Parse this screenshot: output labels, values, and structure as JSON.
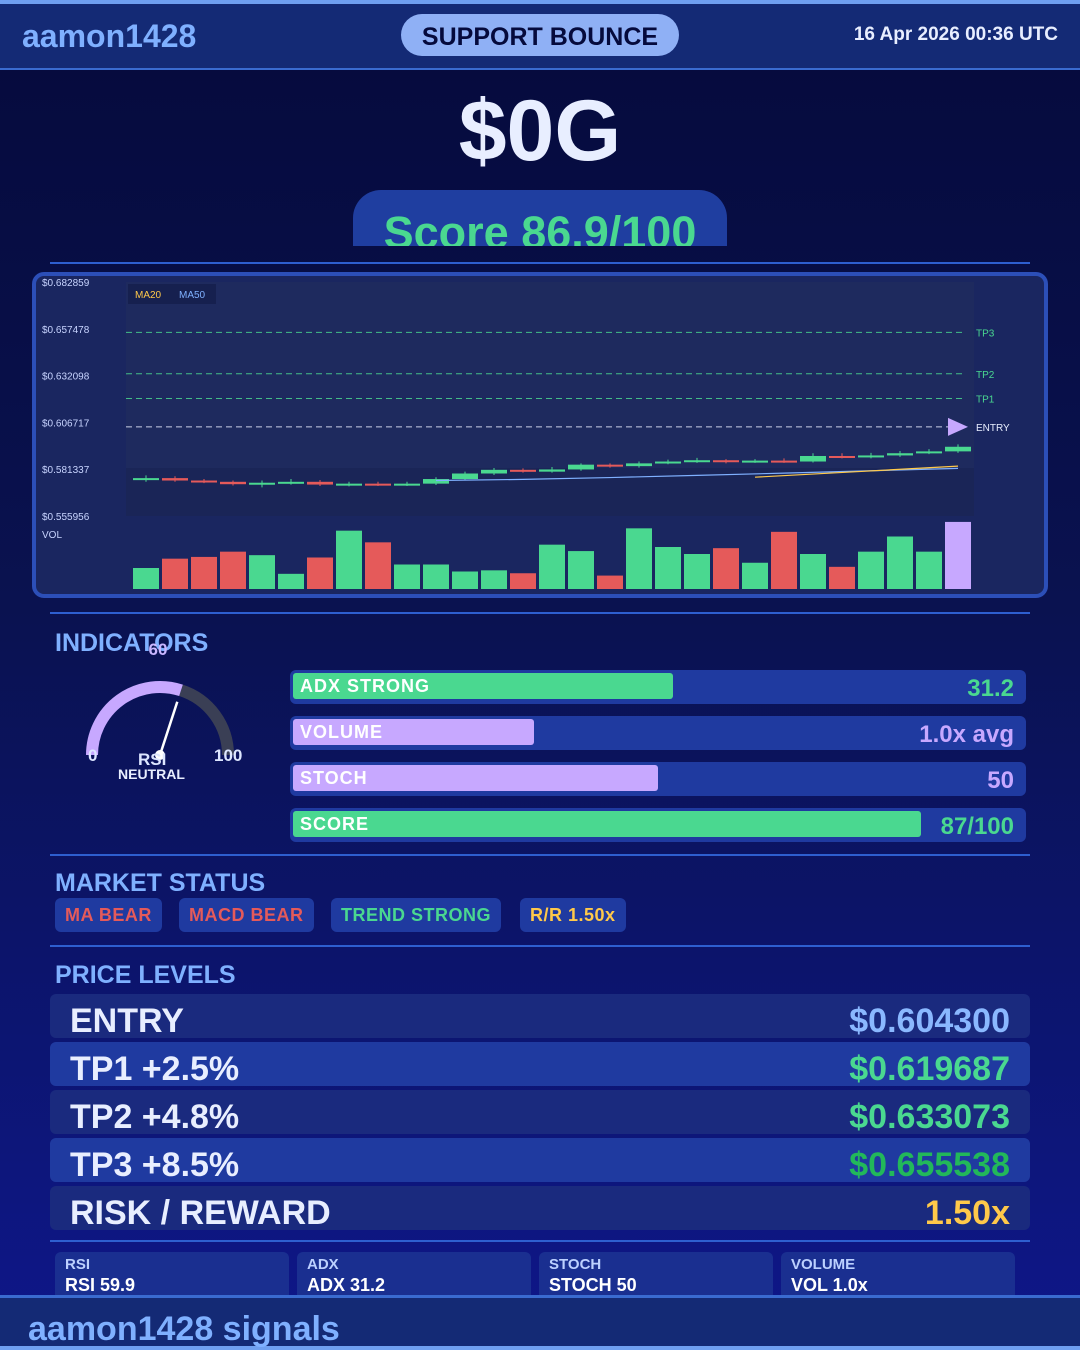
{
  "header": {
    "brand": "aamon1428",
    "signal_type": "SUPPORT BOUNCE",
    "datetime": "16 Apr 2026  00:36 UTC"
  },
  "asset": {
    "ticker": "$0G",
    "score_label": "Score 86.9/100"
  },
  "chart_data": {
    "type": "candlestick",
    "y_tick_labels": [
      "$0.682859",
      "$0.657478",
      "$0.632098",
      "$0.606717",
      "$0.581337",
      "$0.555956"
    ],
    "ylim": [
      0.555956,
      0.682859
    ],
    "legend": [
      "MA20",
      "MA50"
    ],
    "volume_label": "VOL",
    "levels": [
      {
        "name": "TP3",
        "value": 0.655538
      },
      {
        "name": "TP2",
        "value": 0.633073
      },
      {
        "name": "TP1",
        "value": 0.619687
      },
      {
        "name": "ENTRY",
        "value": 0.6043
      }
    ],
    "candles": [
      {
        "o": 0.5755,
        "c": 0.5765,
        "h": 0.578,
        "l": 0.5745,
        "v": 0.36
      },
      {
        "o": 0.5765,
        "c": 0.5752,
        "h": 0.5775,
        "l": 0.5745,
        "v": 0.52
      },
      {
        "o": 0.5752,
        "c": 0.5745,
        "h": 0.576,
        "l": 0.5738,
        "v": 0.55
      },
      {
        "o": 0.5745,
        "c": 0.5732,
        "h": 0.5752,
        "l": 0.5725,
        "v": 0.64
      },
      {
        "o": 0.5732,
        "c": 0.574,
        "h": 0.5752,
        "l": 0.5715,
        "v": 0.58
      },
      {
        "o": 0.574,
        "c": 0.5745,
        "h": 0.576,
        "l": 0.573,
        "v": 0.26
      },
      {
        "o": 0.5745,
        "c": 0.573,
        "h": 0.5755,
        "l": 0.5722,
        "v": 0.54
      },
      {
        "o": 0.573,
        "c": 0.5735,
        "h": 0.5745,
        "l": 0.572,
        "v": 1.0
      },
      {
        "o": 0.5735,
        "c": 0.573,
        "h": 0.5745,
        "l": 0.5722,
        "v": 0.8
      },
      {
        "o": 0.573,
        "c": 0.5735,
        "h": 0.5745,
        "l": 0.5722,
        "v": 0.42
      },
      {
        "o": 0.5735,
        "c": 0.576,
        "h": 0.577,
        "l": 0.5728,
        "v": 0.42
      },
      {
        "o": 0.576,
        "c": 0.579,
        "h": 0.58,
        "l": 0.5755,
        "v": 0.3
      },
      {
        "o": 0.579,
        "c": 0.581,
        "h": 0.582,
        "l": 0.5782,
        "v": 0.32
      },
      {
        "o": 0.581,
        "c": 0.58,
        "h": 0.5818,
        "l": 0.5795,
        "v": 0.27
      },
      {
        "o": 0.58,
        "c": 0.5812,
        "h": 0.5825,
        "l": 0.5795,
        "v": 0.76
      },
      {
        "o": 0.5812,
        "c": 0.5838,
        "h": 0.5845,
        "l": 0.5805,
        "v": 0.65
      },
      {
        "o": 0.5838,
        "c": 0.583,
        "h": 0.5845,
        "l": 0.5822,
        "v": 0.23
      },
      {
        "o": 0.583,
        "c": 0.5845,
        "h": 0.5855,
        "l": 0.5822,
        "v": 1.04
      },
      {
        "o": 0.5845,
        "c": 0.5855,
        "h": 0.5865,
        "l": 0.584,
        "v": 0.72
      },
      {
        "o": 0.5855,
        "c": 0.5862,
        "h": 0.5875,
        "l": 0.5848,
        "v": 0.6
      },
      {
        "o": 0.5862,
        "c": 0.5855,
        "h": 0.5868,
        "l": 0.5845,
        "v": 0.7
      },
      {
        "o": 0.5855,
        "c": 0.586,
        "h": 0.5868,
        "l": 0.5848,
        "v": 0.45
      },
      {
        "o": 0.586,
        "c": 0.5855,
        "h": 0.5872,
        "l": 0.5848,
        "v": 0.98
      },
      {
        "o": 0.5855,
        "c": 0.5885,
        "h": 0.59,
        "l": 0.585,
        "v": 0.6
      },
      {
        "o": 0.5885,
        "c": 0.588,
        "h": 0.59,
        "l": 0.5872,
        "v": 0.38
      },
      {
        "o": 0.588,
        "c": 0.5888,
        "h": 0.5902,
        "l": 0.5872,
        "v": 0.64
      },
      {
        "o": 0.5888,
        "c": 0.59,
        "h": 0.5912,
        "l": 0.588,
        "v": 0.9
      },
      {
        "o": 0.59,
        "c": 0.591,
        "h": 0.5922,
        "l": 0.5895,
        "v": 0.64
      },
      {
        "o": 0.591,
        "c": 0.5935,
        "h": 0.5948,
        "l": 0.5902,
        "v": 1.15
      }
    ],
    "ma20": [
      0.577,
      0.5785,
      0.58,
      0.5815,
      0.583
    ],
    "ma50": [
      0.5752,
      0.5758,
      0.5768,
      0.578,
      0.5792,
      0.5805,
      0.5818
    ]
  },
  "indicators": {
    "title": "INDICATORS",
    "rsi": {
      "value": 60,
      "value_text": "60",
      "min": "0",
      "max": "100",
      "name": "RSI",
      "state": "NEUTRAL"
    },
    "bars": [
      {
        "label": "ADX  STRONG",
        "value": "31.2",
        "fill": 0.52,
        "fill_color": "#4ad890",
        "value_color": "#4ad890"
      },
      {
        "label": "VOLUME",
        "value": "1.0x avg",
        "fill": 0.33,
        "fill_color": "#c7a8ff",
        "value_color": "#c7a8ff"
      },
      {
        "label": "STOCH",
        "value": "50",
        "fill": 0.5,
        "fill_color": "#c7a8ff",
        "value_color": "#c7a8ff"
      },
      {
        "label": "SCORE",
        "value": "87/100",
        "fill": 0.86,
        "fill_color": "#4ad890",
        "value_color": "#4ad890"
      }
    ]
  },
  "market_status": {
    "title": "MARKET STATUS",
    "badges": [
      {
        "text": "MA BEAR",
        "color": "#e55a5a"
      },
      {
        "text": "MACD BEAR",
        "color": "#e55a5a"
      },
      {
        "text": "TREND STRONG",
        "color": "#4ad890"
      },
      {
        "text": "R/R  1.50x",
        "color": "#ffc94a"
      }
    ]
  },
  "price_levels": {
    "title": "PRICE LEVELS",
    "rows": [
      {
        "name": "ENTRY",
        "value": "$0.604300",
        "color": "#8ab8ff"
      },
      {
        "name": "TP1  +2.5%",
        "value": "$0.619687",
        "color": "#4ad890"
      },
      {
        "name": "TP2  +4.8%",
        "value": "$0.633073",
        "color": "#4ad890"
      },
      {
        "name": "TP3  +8.5%",
        "value": "$0.655538",
        "color": "#22b85a"
      },
      {
        "name": "RISK / REWARD",
        "value": "1.50x",
        "color": "#ffc94a"
      }
    ]
  },
  "stats": [
    {
      "label": "RSI",
      "value": "RSI 59.9"
    },
    {
      "label": "ADX",
      "value": "ADX 31.2"
    },
    {
      "label": "STOCH",
      "value": "STOCH 50"
    },
    {
      "label": "VOLUME",
      "value": "VOL 1.0x"
    }
  ],
  "footer": {
    "brand": "aamon1428 signals"
  }
}
